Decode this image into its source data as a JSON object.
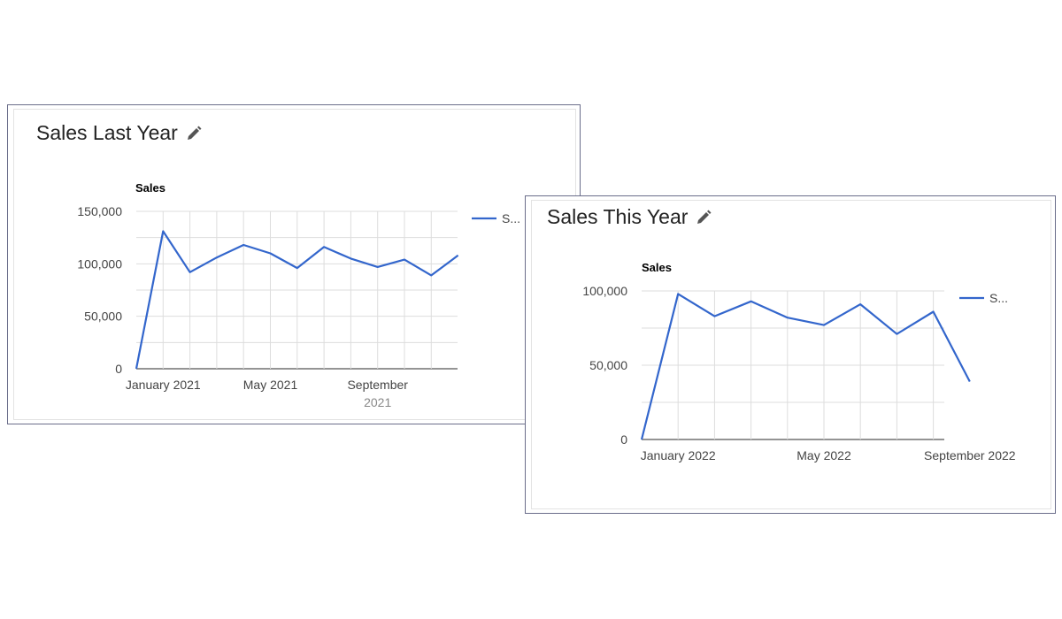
{
  "cards": [
    {
      "id": "last",
      "title": "Sales Last Year",
      "chart_data": {
        "type": "line",
        "title": "Sales Last Year",
        "ylabel": "Sales",
        "ylim": [
          0,
          150000
        ],
        "y_ticks": [
          0,
          50000,
          100000,
          150000
        ],
        "y_tick_labels": [
          "0",
          "50,000",
          "100,000",
          "150,000"
        ],
        "x_tick_labels": [
          {
            "label": "January 2021",
            "sub": "",
            "index": 1
          },
          {
            "label": "May 2021",
            "sub": "",
            "index": 5
          },
          {
            "label": "September",
            "sub": "2021",
            "index": 9
          }
        ],
        "legend": "S...",
        "legend_position": "right",
        "series": [
          {
            "values": [
              0,
              131000,
              92000,
              106000,
              118000,
              110000,
              96000,
              116000,
              105000,
              97000,
              104000,
              89000,
              108000
            ]
          }
        ],
        "color": "#3366cc",
        "grid": true
      }
    },
    {
      "id": "this",
      "title": "Sales This Year",
      "chart_data": {
        "type": "line",
        "title": "Sales This Year",
        "ylabel": "Sales",
        "ylim": [
          0,
          100000
        ],
        "y_ticks": [
          0,
          50000,
          100000
        ],
        "y_tick_labels": [
          "0",
          "50,000",
          "100,000"
        ],
        "x_tick_labels": [
          {
            "label": "January 2022",
            "sub": "",
            "index": 1
          },
          {
            "label": "May 2022",
            "sub": "",
            "index": 5
          },
          {
            "label": "September 2022",
            "sub": "",
            "index": 9
          }
        ],
        "legend": "S...",
        "legend_position": "right",
        "series": [
          {
            "values": [
              0,
              98000,
              83000,
              93000,
              82000,
              77000,
              91000,
              71000,
              86000,
              39000
            ]
          }
        ],
        "color": "#3366cc",
        "grid": true
      }
    }
  ]
}
